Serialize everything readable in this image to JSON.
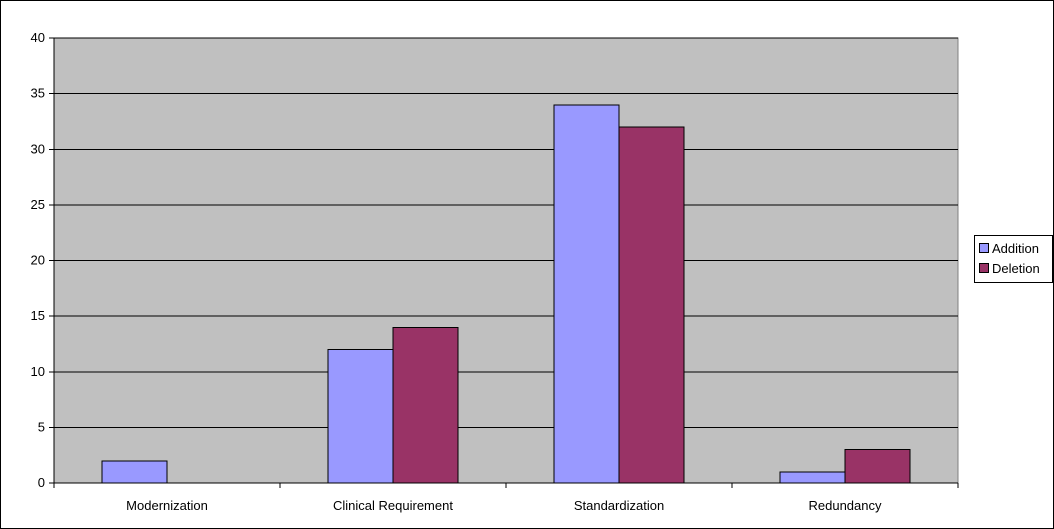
{
  "chart_data": {
    "type": "bar",
    "categories": [
      "Modernization",
      "Clinical Requirement",
      "Standardization",
      "Redundancy"
    ],
    "series": [
      {
        "name": "Addition",
        "values": [
          2,
          12,
          34,
          1
        ],
        "color": "#9999FF"
      },
      {
        "name": "Deletion",
        "values": [
          0,
          14,
          32,
          3
        ],
        "color": "#993366"
      }
    ],
    "ylim": [
      0,
      40
    ],
    "yticks": [
      0,
      5,
      10,
      15,
      20,
      25,
      30,
      35,
      40
    ],
    "grid": true,
    "plot_background": "#C0C0C0",
    "legend_position": "right"
  }
}
